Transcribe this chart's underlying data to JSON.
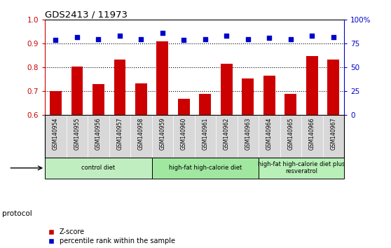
{
  "title": "GDS2413 / 11973",
  "samples": [
    "GSM140954",
    "GSM140955",
    "GSM140956",
    "GSM140957",
    "GSM140958",
    "GSM140959",
    "GSM140960",
    "GSM140961",
    "GSM140962",
    "GSM140963",
    "GSM140964",
    "GSM140965",
    "GSM140966",
    "GSM140967"
  ],
  "zscore": [
    0.7,
    0.805,
    0.73,
    0.833,
    0.733,
    0.91,
    0.668,
    0.688,
    0.817,
    0.755,
    0.765,
    0.688,
    0.848,
    0.833
  ],
  "percentile_right": [
    79,
    82,
    80,
    83,
    80,
    86,
    79,
    80,
    83,
    80,
    81,
    80,
    83,
    82
  ],
  "bar_color": "#cc0000",
  "dot_color": "#0000cc",
  "ylim_left": [
    0.6,
    1.0
  ],
  "ylim_right": [
    0,
    100
  ],
  "yticks_left": [
    0.6,
    0.7,
    0.8,
    0.9,
    1.0
  ],
  "yticks_right": [
    0,
    25,
    50,
    75,
    100
  ],
  "ytick_labels_right": [
    "0",
    "25",
    "50",
    "75",
    "100%"
  ],
  "dotted_lines": [
    0.7,
    0.8,
    0.9
  ],
  "groups": [
    {
      "label": "control diet",
      "start": 0,
      "end": 5,
      "color": "#c0eec0"
    },
    {
      "label": "high-fat high-calorie diet",
      "start": 5,
      "end": 10,
      "color": "#a0e8a0"
    },
    {
      "label": "high-fat high-calorie diet plus\nresveratrol",
      "start": 10,
      "end": 14,
      "color": "#b8f0b8"
    }
  ],
  "legend_zscore": "Z-score",
  "legend_pct": "percentile rank within the sample",
  "protocol_label": "protocol",
  "tick_bg_color": "#d8d8d8",
  "bg_color": "#ffffff",
  "plot_bg": "#ffffff"
}
